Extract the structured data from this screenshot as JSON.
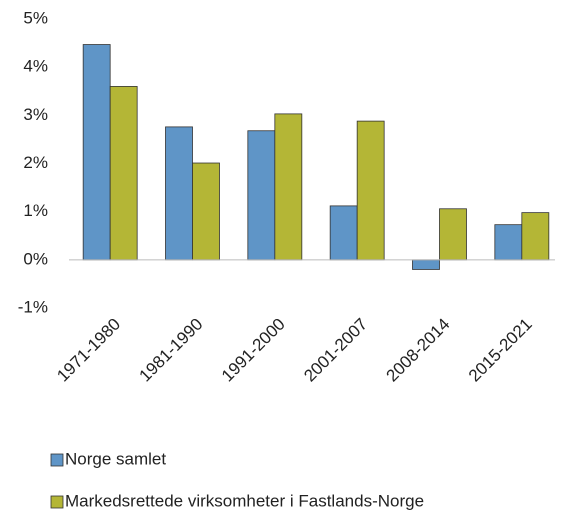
{
  "chart_data": {
    "type": "bar",
    "categories": [
      "1971-1980",
      "1981-1990",
      "1991-2000",
      "2001-2007",
      "2008-2014",
      "2015-2021"
    ],
    "series": [
      {
        "name": "Norge samlet",
        "color": "#5f95c7",
        "values": [
          4.47,
          2.76,
          2.68,
          1.12,
          -0.2,
          0.73
        ]
      },
      {
        "name": "Markedsrettede virksomheter i Fastlands-Norge",
        "color": "#b4b636",
        "values": [
          3.6,
          2.01,
          3.03,
          2.88,
          1.06,
          0.98
        ]
      }
    ],
    "ylim": [
      -1,
      5
    ],
    "yticks": [
      {
        "value": -1,
        "label": "-1%"
      },
      {
        "value": 0,
        "label": "0%"
      },
      {
        "value": 1,
        "label": "1%"
      },
      {
        "value": 2,
        "label": "2%"
      },
      {
        "value": 3,
        "label": "3%"
      },
      {
        "value": 4,
        "label": "4%"
      },
      {
        "value": 5,
        "label": "5%"
      }
    ],
    "legend": "bottom"
  }
}
